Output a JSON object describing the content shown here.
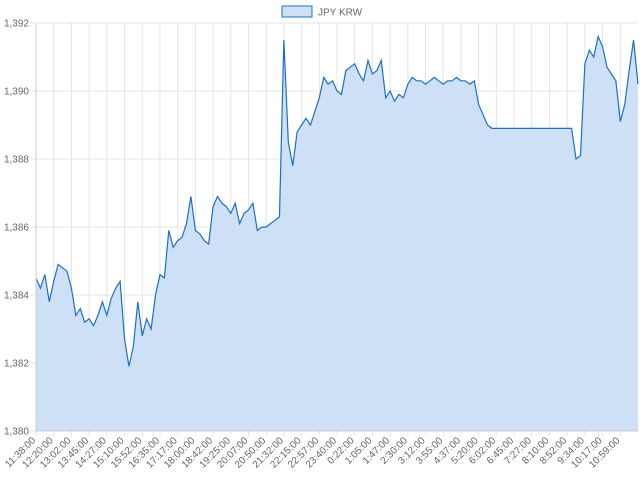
{
  "chart_data": {
    "type": "area",
    "categories": [
      "11:38:00",
      null,
      null,
      null,
      "12:20:00",
      null,
      null,
      null,
      "13:02:00",
      null,
      null,
      null,
      "13:45:00",
      null,
      null,
      null,
      "14:27:00",
      null,
      null,
      null,
      "15:10:00",
      null,
      null,
      null,
      "15:52:00",
      null,
      null,
      null,
      "16:35:00",
      null,
      null,
      null,
      "17:17:00",
      null,
      null,
      null,
      "18:00:00",
      null,
      null,
      null,
      "18:42:00",
      null,
      null,
      null,
      "19:25:00",
      null,
      null,
      null,
      "20:07:00",
      null,
      null,
      null,
      "20:50:00",
      null,
      null,
      null,
      "21:32:00",
      null,
      null,
      null,
      "22:15:00",
      null,
      null,
      null,
      "22:57:00",
      null,
      null,
      null,
      "23:40:00",
      null,
      null,
      null,
      "0:22:00",
      null,
      null,
      null,
      "1:05:00",
      null,
      null,
      null,
      "1:47:00",
      null,
      null,
      null,
      "2:30:00",
      null,
      null,
      null,
      "3:12:00",
      null,
      null,
      null,
      "3:55:00",
      null,
      null,
      null,
      "4:37:00",
      null,
      null,
      null,
      "5:20:00",
      null,
      null,
      null,
      "6:02:00",
      null,
      null,
      null,
      "6:45:00",
      null,
      null,
      null,
      "7:27:00",
      null,
      null,
      null,
      "8:10:00",
      null,
      null,
      null,
      "8:52:00",
      null,
      null,
      null,
      "9:34:00",
      null,
      null,
      null,
      "10:17:00",
      null,
      null,
      null,
      "10:59:00",
      null,
      null,
      null,
      null
    ],
    "series": [
      {
        "name": "JPY KRW",
        "color": "#1e6fc8",
        "fill": "#cde0f5",
        "values": [
          1384.5,
          1384.2,
          1384.6,
          1383.8,
          1384.4,
          1384.9,
          1384.8,
          1384.7,
          1384.2,
          1383.4,
          1383.6,
          1383.2,
          1383.3,
          1383.1,
          1383.4,
          1383.8,
          1383.4,
          1383.9,
          1384.2,
          1384.4,
          1382.7,
          1381.9,
          1382.5,
          1383.8,
          1382.8,
          1383.3,
          1383.0,
          1384.0,
          1384.6,
          1384.5,
          1385.9,
          1385.4,
          1385.6,
          1385.7,
          1386.1,
          1386.9,
          1385.9,
          1385.8,
          1385.6,
          1385.5,
          1386.6,
          1386.9,
          1386.7,
          1386.6,
          1386.4,
          1386.7,
          1386.1,
          1386.4,
          1386.5,
          1386.7,
          1385.9,
          1386.0,
          1386.0,
          1386.1,
          1386.2,
          1386.3,
          1391.5,
          1388.5,
          1387.8,
          1388.8,
          1389.0,
          1389.2,
          1389.0,
          1389.4,
          1389.8,
          1390.4,
          1390.2,
          1390.3,
          1390.0,
          1389.9,
          1390.6,
          1390.7,
          1390.8,
          1390.5,
          1390.3,
          1390.9,
          1390.5,
          1390.6,
          1390.9,
          1389.8,
          1390.0,
          1389.7,
          1389.9,
          1389.8,
          1390.2,
          1390.4,
          1390.3,
          1390.3,
          1390.2,
          1390.3,
          1390.4,
          1390.3,
          1390.2,
          1390.3,
          1390.3,
          1390.4,
          1390.3,
          1390.3,
          1390.2,
          1390.3,
          1389.6,
          1389.3,
          1389.0,
          1388.9,
          1388.9,
          1388.9,
          1388.9,
          1388.9,
          1388.9,
          1388.9,
          1388.9,
          1388.9,
          1388.9,
          1388.9,
          1388.9,
          1388.9,
          1388.9,
          1388.9,
          1388.9,
          1388.9,
          1388.9,
          1388.9,
          1388.0,
          1388.1,
          1390.8,
          1391.2,
          1391.0,
          1391.6,
          1391.3,
          1390.7,
          1390.5,
          1390.3,
          1389.1,
          1389.6,
          1390.6,
          1391.5,
          1390.2
        ]
      }
    ],
    "ylim": [
      1380,
      1392
    ],
    "yticks": [
      {
        "value": 1380,
        "label": "1,380"
      },
      {
        "value": 1382,
        "label": "1,382"
      },
      {
        "value": 1384,
        "label": "1,384"
      },
      {
        "value": 1386,
        "label": "1,386"
      },
      {
        "value": 1388,
        "label": "1,388"
      },
      {
        "value": 1390,
        "label": "1,390"
      },
      {
        "value": 1392,
        "label": "1,392"
      }
    ],
    "grid": true,
    "legend": "top"
  }
}
